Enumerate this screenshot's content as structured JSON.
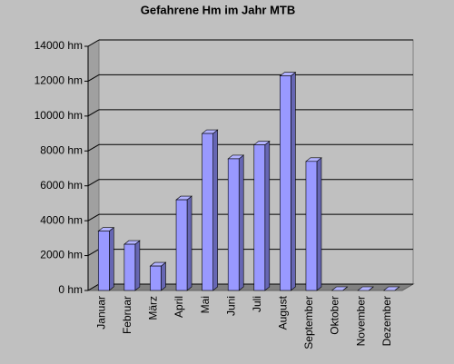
{
  "chart_data": {
    "type": "bar",
    "title": "Gefahrene Hm im Jahr MTB",
    "categories": [
      "Januar",
      "Februar",
      "März",
      "April",
      "Mai",
      "Juni",
      "Juli",
      "August",
      "September",
      "Oktober",
      "November",
      "Dezember"
    ],
    "values": [
      3400,
      2650,
      1400,
      5200,
      9000,
      7550,
      8350,
      12300,
      7400,
      0,
      0,
      0
    ],
    "color": "#9999ff",
    "ylim": [
      0,
      14000
    ],
    "yticks": [
      {
        "value": 0,
        "label": "0 hm"
      },
      {
        "value": 2000,
        "label": "2000 hm"
      },
      {
        "value": 4000,
        "label": "4000 hm"
      },
      {
        "value": 6000,
        "label": "6000 hm"
      },
      {
        "value": 8000,
        "label": "8000 hm"
      },
      {
        "value": 10000,
        "label": "10000 hm"
      },
      {
        "value": 12000,
        "label": "12000 hm"
      },
      {
        "value": 14000,
        "label": "14000 hm"
      }
    ],
    "grid": true
  }
}
